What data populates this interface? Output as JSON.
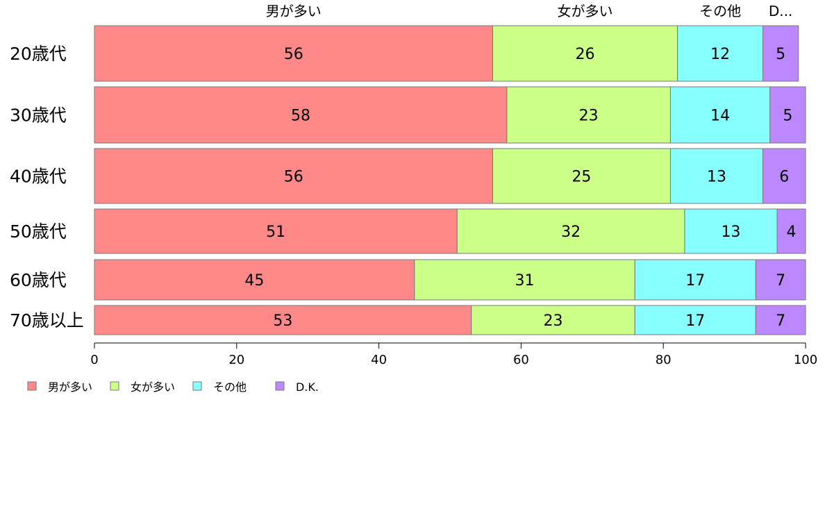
{
  "chart_data": {
    "type": "bar",
    "orientation": "horizontal",
    "stacked": true,
    "categories": [
      "20歳代",
      "30歳代",
      "40歳代",
      "50歳代",
      "60歳代",
      "70歳以上"
    ],
    "series": [
      {
        "name": "男が多い",
        "values": [
          56,
          58,
          56,
          51,
          45,
          53
        ],
        "color": "#FF8888"
      },
      {
        "name": "女が多い",
        "values": [
          26,
          23,
          25,
          32,
          31,
          23
        ],
        "color": "#CCFF88"
      },
      {
        "name": "その他",
        "values": [
          12,
          14,
          13,
          13,
          17,
          17
        ],
        "color": "#88FFFF"
      },
      {
        "name": "D.K.",
        "values": [
          5,
          5,
          6,
          4,
          7,
          7
        ],
        "color": "#BB88FF"
      }
    ],
    "top_labels": [
      "男が多い",
      "女が多い",
      "その他",
      "D..."
    ],
    "xlim": [
      0,
      100
    ],
    "xticks": [
      "0",
      "20",
      "40",
      "60",
      "80",
      "100"
    ],
    "grid": false,
    "legend": "bottom-left"
  }
}
